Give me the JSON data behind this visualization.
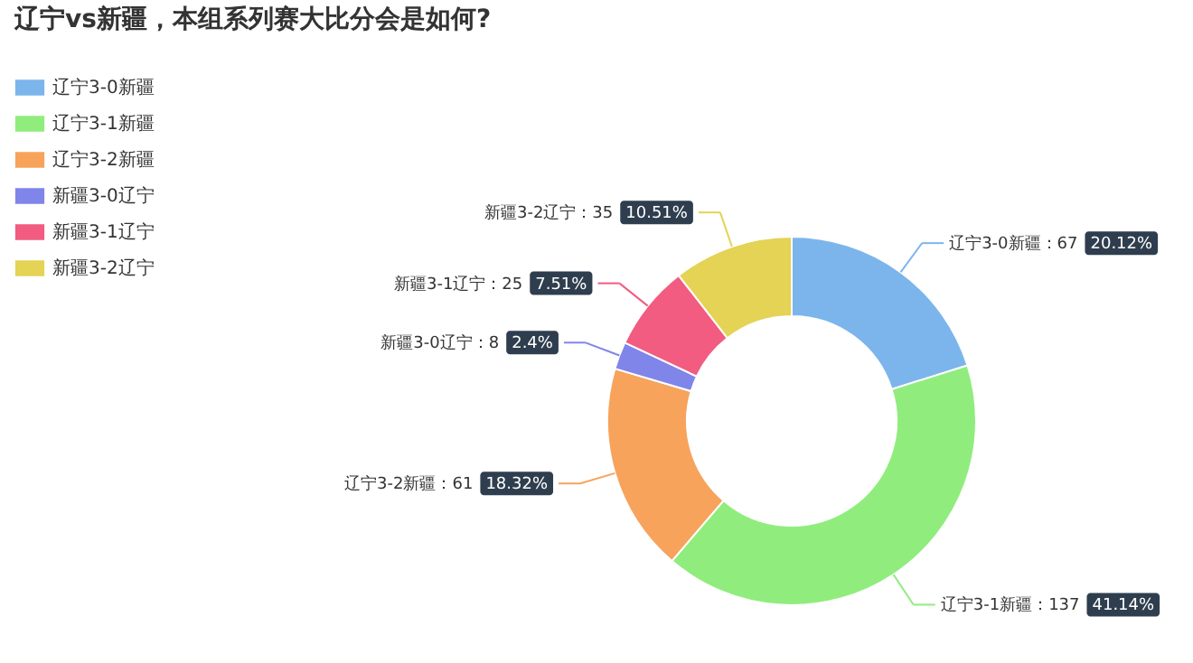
{
  "chart_data": {
    "type": "donut",
    "title": "辽宁vs新疆，本组系列赛大比分会是如何?",
    "categories": [
      "辽宁3-0新疆",
      "辽宁3-1新疆",
      "辽宁3-2新疆",
      "新疆3-0辽宁",
      "新疆3-1辽宁",
      "新疆3-2辽宁"
    ],
    "values": [
      20.12,
      41.14,
      18.32,
      2.4,
      7.51,
      10.51
    ],
    "colors": [
      "#7cb5ec",
      "#90ed7d",
      "#f7a35c",
      "#8085e9",
      "#f15c80",
      "#e4d354"
    ],
    "value_labels": [
      "辽宁3-0新疆：67 20.12%",
      "辽宁3-1新疆：137 41.14%",
      "辽宁3-2新疆：61 18.32%",
      "新疆3-0辽宁：8 2.4%",
      "新疆3-1辽宁：25 7.51%",
      "新疆3-2辽宁：35 10.51%"
    ],
    "legend": "top left"
  }
}
